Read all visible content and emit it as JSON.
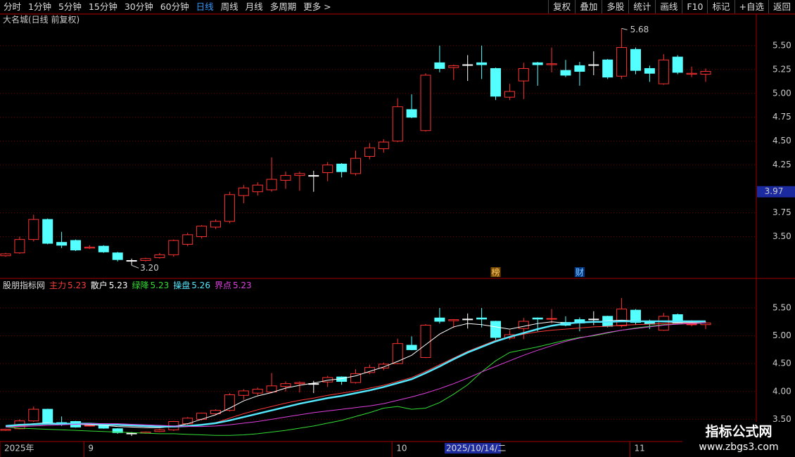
{
  "toolbar": {
    "tabs": [
      "分时",
      "1分钟",
      "5分钟",
      "15分钟",
      "30分钟",
      "60分钟",
      "日线",
      "周线",
      "月线",
      "多周期",
      "更多 >"
    ],
    "active_tab": 6,
    "buttons": [
      "复权",
      "叠加",
      "多股",
      "统计",
      "画线",
      "F10",
      "标记",
      "+自选",
      "返回"
    ]
  },
  "chart_data": [
    {
      "type": "candlestick",
      "title": "大名城(日线 前复权)",
      "open": [
        3.3,
        3.33,
        3.47,
        3.68,
        3.44,
        3.46,
        3.38,
        3.4,
        3.33,
        3.25,
        3.25,
        3.28,
        3.31,
        3.42,
        3.5,
        3.6,
        3.66,
        3.93,
        3.97,
        3.99,
        4.09,
        4.14,
        4.14,
        4.17,
        4.26,
        4.16,
        4.34,
        4.42,
        4.5,
        4.83,
        4.61,
        5.32,
        5.27,
        5.3,
        5.32,
        5.26,
        4.96,
        5.13,
        5.32,
        5.3,
        5.24,
        5.29,
        5.3,
        5.35,
        5.18,
        5.46,
        5.26,
        5.1,
        5.38,
        5.2,
        5.2
      ],
      "high": [
        3.33,
        3.5,
        3.73,
        3.69,
        3.55,
        3.47,
        3.41,
        3.41,
        3.34,
        3.27,
        3.28,
        3.33,
        3.47,
        3.54,
        3.62,
        3.68,
        3.97,
        4.04,
        4.07,
        4.33,
        4.18,
        4.18,
        4.19,
        4.28,
        4.27,
        4.4,
        4.48,
        4.52,
        4.95,
        4.99,
        5.21,
        5.5,
        5.3,
        5.4,
        5.5,
        5.27,
        5.1,
        5.32,
        5.33,
        5.48,
        5.35,
        5.33,
        5.44,
        5.36,
        5.68,
        5.48,
        5.29,
        5.41,
        5.4,
        5.28,
        5.26
      ],
      "low": [
        3.29,
        3.32,
        3.45,
        3.42,
        3.38,
        3.35,
        3.37,
        3.33,
        3.24,
        3.2,
        3.24,
        3.27,
        3.29,
        3.4,
        3.48,
        3.58,
        3.64,
        3.85,
        3.93,
        3.97,
        4.0,
        3.98,
        3.97,
        4.08,
        4.12,
        4.14,
        4.31,
        4.38,
        4.49,
        4.74,
        4.6,
        5.22,
        5.14,
        5.13,
        5.15,
        4.93,
        4.93,
        4.94,
        5.08,
        5.22,
        5.17,
        5.08,
        5.19,
        5.15,
        5.15,
        5.2,
        5.12,
        5.09,
        5.2,
        5.17,
        5.12
      ],
      "close": [
        3.32,
        3.47,
        3.68,
        3.43,
        3.41,
        3.36,
        3.39,
        3.34,
        3.26,
        3.25,
        3.27,
        3.31,
        3.46,
        3.52,
        3.61,
        3.66,
        3.94,
        4.01,
        4.04,
        4.1,
        4.14,
        4.16,
        4.14,
        4.25,
        4.18,
        4.32,
        4.43,
        4.49,
        4.86,
        4.75,
        5.19,
        5.26,
        5.29,
        5.3,
        5.3,
        4.97,
        5.02,
        5.26,
        5.3,
        5.31,
        5.19,
        5.23,
        5.3,
        5.17,
        5.48,
        5.24,
        5.21,
        5.35,
        5.22,
        5.21,
        5.23
      ],
      "up_color": "#ff3232",
      "down_color": "#54ffff",
      "ylim": [
        3.07,
        5.83
      ],
      "yticks": [
        {
          "value": 3.5,
          "label": "3.50"
        },
        3.75,
        4.25,
        {
          "value": 4.5,
          "label": "4.50"
        },
        4.75,
        {
          "value": 5,
          "label": "5.00"
        },
        5.25,
        {
          "value": 5.5,
          "label": "5.50"
        }
      ],
      "grid": true,
      "high_label": 5.68,
      "low_label": {
        "value": 3.2,
        "label": "3.20"
      },
      "cursor_price": 3.97,
      "events": [
        "榜",
        "财"
      ]
    },
    {
      "type": "indicator",
      "title": "股朋指标网",
      "series": [
        {
          "name": "主力",
          "color": "#ff3a3a",
          "values": [
            3.37,
            3.38,
            3.4,
            3.41,
            3.41,
            3.41,
            3.41,
            3.4,
            3.39,
            3.38,
            3.37,
            3.36,
            3.36,
            3.37,
            3.4,
            3.44,
            3.52,
            3.6,
            3.67,
            3.73,
            3.79,
            3.84,
            3.88,
            3.93,
            3.97,
            4.01,
            4.06,
            4.11,
            4.18,
            4.25,
            4.36,
            4.48,
            4.6,
            4.72,
            4.82,
            4.92,
            4.98,
            5.03,
            5.07,
            5.1,
            5.12,
            5.14,
            5.16,
            5.17,
            5.19,
            5.2,
            5.21,
            5.22,
            5.22,
            5.23,
            5.23
          ]
        },
        {
          "name": "散户",
          "color": "#ffffff",
          "values": [
            3.36,
            3.4,
            3.42,
            3.44,
            3.42,
            3.41,
            3.4,
            3.39,
            3.37,
            3.36,
            3.35,
            3.35,
            3.37,
            3.42,
            3.5,
            3.58,
            3.7,
            3.83,
            3.92,
            3.98,
            4.06,
            4.11,
            4.15,
            4.2,
            4.23,
            4.28,
            4.36,
            4.44,
            4.54,
            4.65,
            4.84,
            5.03,
            5.16,
            5.22,
            5.2,
            5.16,
            5.12,
            5.17,
            5.22,
            5.25,
            5.23,
            5.23,
            5.25,
            5.27,
            5.28,
            5.27,
            5.26,
            5.25,
            5.24,
            5.24,
            5.23
          ]
        },
        {
          "name": "绿降",
          "color": "#33dd33",
          "values": [
            3.36,
            3.34,
            3.33,
            3.32,
            3.31,
            3.3,
            3.29,
            3.28,
            3.27,
            3.26,
            3.25,
            3.24,
            3.24,
            3.23,
            3.22,
            3.21,
            3.21,
            3.22,
            3.24,
            3.27,
            3.3,
            3.34,
            3.38,
            3.43,
            3.48,
            3.55,
            3.62,
            3.7,
            3.73,
            3.68,
            3.7,
            3.8,
            3.95,
            4.12,
            4.35,
            4.55,
            4.7,
            4.75,
            4.8,
            4.86,
            4.92,
            4.97,
            5.0,
            5.05,
            5.1,
            5.14,
            5.17,
            5.2,
            5.21,
            5.22,
            5.23
          ]
        },
        {
          "name": "操盘",
          "color": "#54e8ff",
          "values": [
            3.38,
            3.4,
            3.41,
            3.42,
            3.42,
            3.42,
            3.42,
            3.41,
            3.4,
            3.39,
            3.38,
            3.37,
            3.37,
            3.38,
            3.4,
            3.43,
            3.48,
            3.54,
            3.6,
            3.66,
            3.72,
            3.78,
            3.83,
            3.88,
            3.92,
            3.97,
            4.02,
            4.08,
            4.15,
            4.22,
            4.33,
            4.45,
            4.58,
            4.7,
            4.8,
            4.9,
            4.98,
            5.05,
            5.12,
            5.18,
            5.22,
            5.24,
            5.25,
            5.25,
            5.26,
            5.26,
            5.26,
            5.26,
            5.26,
            5.26,
            5.26
          ]
        },
        {
          "name": "界点",
          "color": "#e040e0",
          "values": [
            3.36,
            3.37,
            3.38,
            3.39,
            3.4,
            3.41,
            3.42,
            3.42,
            3.42,
            3.41,
            3.4,
            3.39,
            3.38,
            3.37,
            3.37,
            3.38,
            3.4,
            3.43,
            3.46,
            3.5,
            3.54,
            3.58,
            3.62,
            3.65,
            3.68,
            3.71,
            3.74,
            3.78,
            3.84,
            3.9,
            3.97,
            4.05,
            4.14,
            4.24,
            4.35,
            4.45,
            4.55,
            4.65,
            4.74,
            4.82,
            4.9,
            4.96,
            5.01,
            5.06,
            5.1,
            5.13,
            5.16,
            5.19,
            5.21,
            5.22,
            5.23
          ]
        }
      ],
      "ylim": [
        3.1,
        5.98
      ],
      "yticks": [
        {
          "value": 3.5,
          "label": "3.50"
        },
        {
          "value": 4,
          "label": "4.00"
        },
        {
          "value": 4.5,
          "label": "4.50"
        },
        {
          "value": 5,
          "label": "5.00"
        },
        {
          "value": 5.5,
          "label": "5.50"
        }
      ],
      "categories": [
        "2025年",
        null,
        null,
        null,
        null,
        null,
        "9",
        null,
        null,
        null,
        null,
        null,
        null,
        null,
        null,
        null,
        null,
        null,
        null,
        null,
        null,
        null,
        null,
        null,
        null,
        null,
        null,
        null,
        "10",
        null,
        null,
        null,
        null,
        null,
        null,
        null,
        null,
        null,
        null,
        null,
        null,
        null,
        null,
        null,
        null,
        "11",
        null,
        null,
        null,
        null,
        null
      ],
      "cursor_label": "2025/10/14/二"
    }
  ],
  "watermark": {
    "title": "指标公式网",
    "url": "www.zbgs3.com"
  }
}
